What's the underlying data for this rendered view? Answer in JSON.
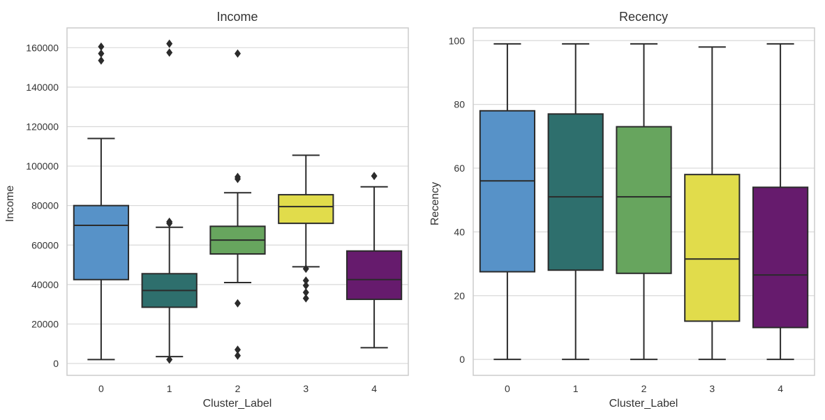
{
  "chart_data": [
    {
      "type": "box",
      "title": "Income",
      "xlabel": "Cluster_Label",
      "ylabel": "Income",
      "categories": [
        "0",
        "1",
        "2",
        "3",
        "4"
      ],
      "yticks": [
        0,
        20000,
        40000,
        60000,
        80000,
        100000,
        120000,
        140000,
        160000
      ],
      "ytick_labels": [
        "0",
        "20000",
        "40000",
        "60000",
        "80000",
        "100000",
        "120000",
        "140000",
        "160000"
      ],
      "ylim": [
        -6000,
        170000
      ],
      "grid": true,
      "colors": [
        "#5792c8",
        "#2e6f6d",
        "#67a55e",
        "#e1dc4b",
        "#661b6d"
      ],
      "boxes": [
        {
          "category": "0",
          "whisker_low": 2000,
          "q1": 42500,
          "median": 70000,
          "q3": 80000,
          "whisker_high": 114000,
          "outliers": [
            153500,
            157000,
            160500
          ]
        },
        {
          "category": "1",
          "whisker_low": 3500,
          "q1": 28500,
          "median": 37000,
          "q3": 45500,
          "whisker_high": 69000,
          "outliers": [
            2000,
            71000,
            71800,
            157500,
            162000
          ]
        },
        {
          "category": "2",
          "whisker_low": 41000,
          "q1": 55500,
          "median": 62500,
          "q3": 69500,
          "whisker_high": 86500,
          "outliers": [
            4000,
            7000,
            30500,
            93500,
            94500,
            157000
          ]
        },
        {
          "category": "3",
          "whisker_low": 49000,
          "q1": 71000,
          "median": 79500,
          "q3": 85500,
          "whisker_high": 105500,
          "outliers": [
            33000,
            36000,
            39500,
            42000,
            48000
          ]
        },
        {
          "category": "4",
          "whisker_low": 8000,
          "q1": 32500,
          "median": 42500,
          "q3": 57000,
          "whisker_high": 89500,
          "outliers": [
            95000
          ]
        }
      ]
    },
    {
      "type": "box",
      "title": "Recency",
      "xlabel": "Cluster_Label",
      "ylabel": "Recency",
      "categories": [
        "0",
        "1",
        "2",
        "3",
        "4"
      ],
      "yticks": [
        0,
        20,
        40,
        60,
        80,
        100
      ],
      "ytick_labels": [
        "0",
        "20",
        "40",
        "60",
        "80",
        "100"
      ],
      "ylim": [
        -5,
        104
      ],
      "grid": true,
      "colors": [
        "#5792c8",
        "#2e6f6d",
        "#67a55e",
        "#e1dc4b",
        "#661b6d"
      ],
      "boxes": [
        {
          "category": "0",
          "whisker_low": 0,
          "q1": 27.5,
          "median": 56,
          "q3": 78,
          "whisker_high": 99,
          "outliers": []
        },
        {
          "category": "1",
          "whisker_low": 0,
          "q1": 28,
          "median": 51,
          "q3": 77,
          "whisker_high": 99,
          "outliers": []
        },
        {
          "category": "2",
          "whisker_low": 0,
          "q1": 27,
          "median": 51,
          "q3": 73,
          "whisker_high": 99,
          "outliers": []
        },
        {
          "category": "3",
          "whisker_low": 0,
          "q1": 12,
          "median": 31.5,
          "q3": 58,
          "whisker_high": 98,
          "outliers": []
        },
        {
          "category": "4",
          "whisker_low": 0,
          "q1": 10,
          "median": 26.5,
          "q3": 54,
          "whisker_high": 99,
          "outliers": []
        }
      ]
    }
  ]
}
